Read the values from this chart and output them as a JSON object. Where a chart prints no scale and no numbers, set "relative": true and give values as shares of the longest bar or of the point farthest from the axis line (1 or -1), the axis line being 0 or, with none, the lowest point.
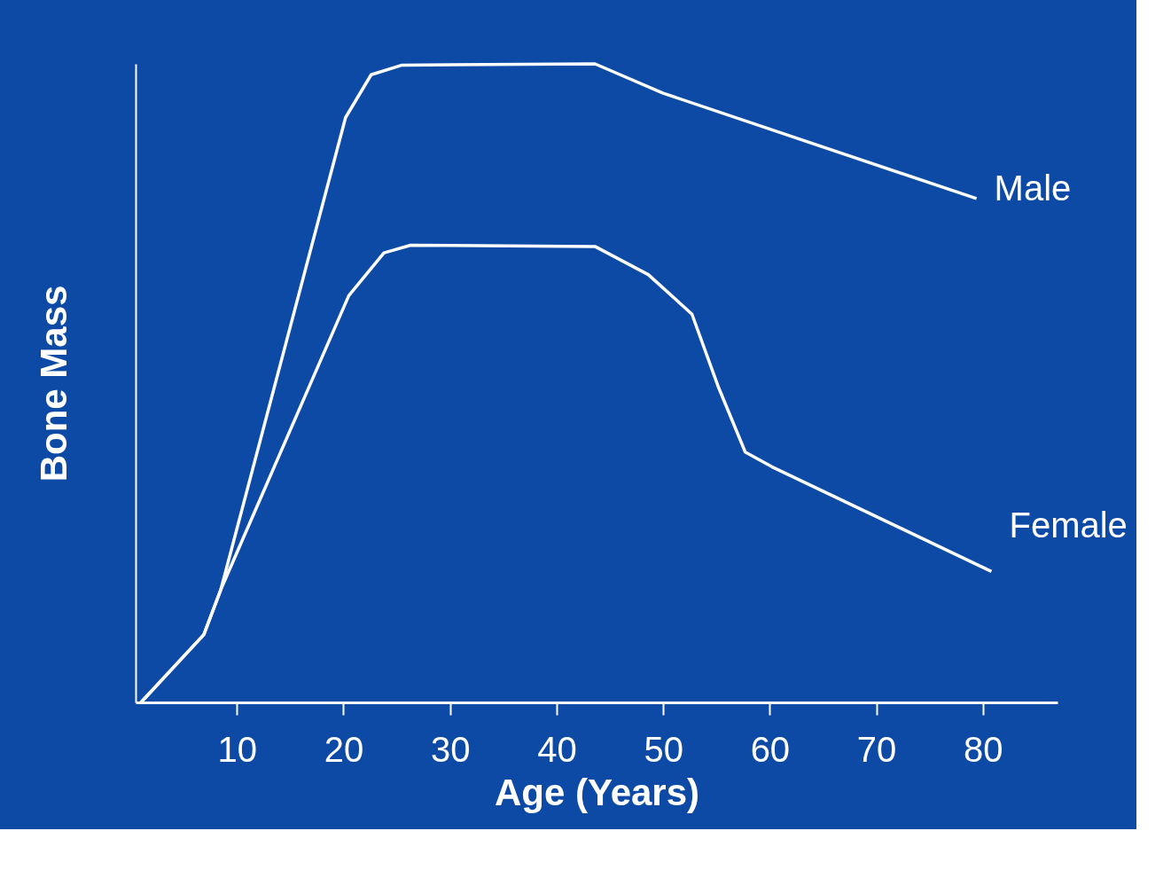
{
  "chart_data": {
    "type": "line",
    "relative": true,
    "xlabel": "Age (Years)",
    "ylabel": "Bone Mass",
    "xlim": [
      0.5,
      87
    ],
    "xticks": [
      10,
      20,
      30,
      40,
      50,
      60,
      70,
      80
    ],
    "tick_labels": "x",
    "grid": false,
    "marker": "none",
    "line_style": "solid",
    "series": [
      {
        "name": "Male",
        "color": "#ffffff",
        "x": [
          1,
          6.9,
          8.5,
          20.2,
          22.6,
          25.5,
          43.6,
          50,
          79.4
        ],
        "values": [
          0,
          0.106,
          0.177,
          0.916,
          0.983,
          0.998,
          1,
          0.954,
          0.789
        ]
      },
      {
        "name": "Female",
        "color": "#ffffff",
        "x": [
          1,
          6.9,
          8.5,
          20.5,
          23.8,
          26.3,
          43.6,
          48.6,
          52.7,
          55.2,
          57.7,
          60.2,
          80.8
        ],
        "values": [
          0,
          0.106,
          0.177,
          0.637,
          0.704,
          0.716,
          0.714,
          0.67,
          0.608,
          0.493,
          0.392,
          0.369,
          0.205
        ]
      }
    ]
  }
}
